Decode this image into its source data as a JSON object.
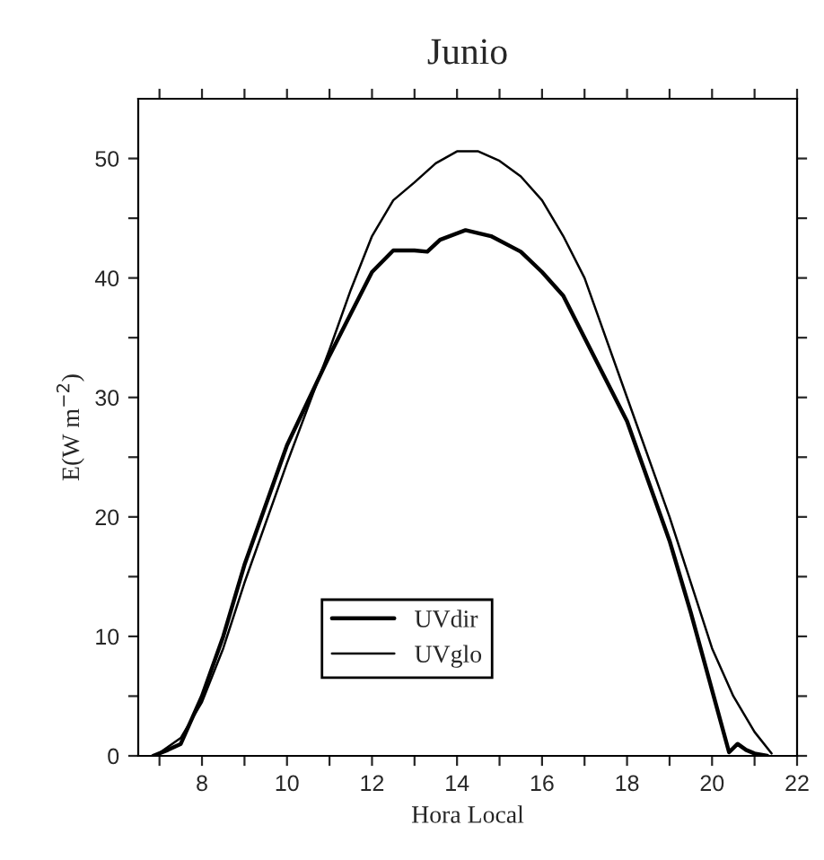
{
  "chart_data": {
    "type": "line",
    "title": "Junio",
    "xlabel": "Hora Local",
    "ylabel": "E(W m$^{−2}$)",
    "xlim": [
      6.5,
      22
    ],
    "ylim": [
      0,
      55
    ],
    "xticks": [
      {
        "value": 7,
        "label": null
      },
      8,
      {
        "value": 9,
        "label": null
      },
      10,
      {
        "value": 11,
        "label": null
      },
      12,
      {
        "value": 13,
        "label": null
      },
      14,
      {
        "value": 15,
        "label": null
      },
      16,
      {
        "value": 17,
        "label": null
      },
      18,
      {
        "value": 19,
        "label": null
      },
      20,
      {
        "value": 21,
        "label": null
      },
      22
    ],
    "yticks": [
      0,
      {
        "value": 5,
        "label": null
      },
      10,
      {
        "value": 15,
        "label": null
      },
      20,
      {
        "value": 25,
        "label": null
      },
      30,
      {
        "value": 35,
        "label": null
      },
      40,
      {
        "value": 45,
        "label": null
      },
      50
    ],
    "grid": false,
    "legend": "bottom left",
    "line_style": "solid",
    "marker": "none",
    "series": [
      {
        "name": "UVdir",
        "color": "#000000",
        "x": [
          6.85,
          7.2,
          7.5,
          8,
          8.5,
          9,
          9.2,
          10,
          11,
          11.5,
          12,
          12.5,
          13,
          13.3,
          13.6,
          14.2,
          14.8,
          15.5,
          16,
          16.5,
          17,
          18,
          19,
          19.5,
          20,
          20.4,
          20.6,
          20.8,
          21,
          21.3
        ],
        "values": [
          0,
          0.5,
          1,
          5,
          10,
          16,
          18,
          26,
          33.5,
          37,
          40.5,
          42.3,
          42.3,
          42.2,
          43.2,
          44,
          43.5,
          42.2,
          40.5,
          38.5,
          35,
          28,
          18,
          12,
          5.5,
          0.3,
          1,
          0.5,
          0.2,
          0
        ]
      },
      {
        "name": "UVglo",
        "color": "#000000",
        "x": [
          6.9,
          7.5,
          8,
          8.5,
          9,
          10,
          11,
          11.5,
          12,
          12.5,
          13,
          13.5,
          14,
          14.5,
          15,
          15.5,
          16,
          16.5,
          17,
          18,
          19,
          20,
          20.5,
          21,
          21.4
        ],
        "values": [
          0,
          1.5,
          4.5,
          9,
          14.5,
          24.5,
          34,
          39,
          43.5,
          46.5,
          48,
          49.6,
          50.6,
          50.6,
          49.8,
          48.5,
          46.5,
          43.5,
          40,
          30,
          20,
          9,
          5,
          2,
          0.2
        ]
      }
    ]
  }
}
